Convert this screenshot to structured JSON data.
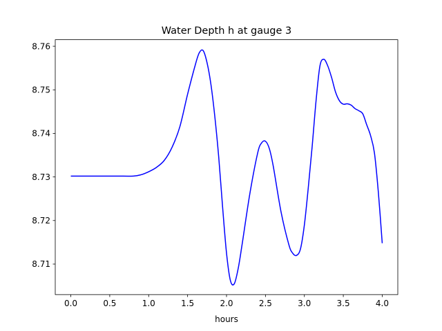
{
  "chart_data": {
    "type": "line",
    "title": "Water Depth h at gauge 3",
    "xlabel": "hours",
    "ylabel": "",
    "xlim": [
      -0.2,
      4.2
    ],
    "ylim": [
      8.703,
      8.7615
    ],
    "xticks": [
      0.0,
      0.5,
      1.0,
      1.5,
      2.0,
      2.5,
      3.0,
      3.5,
      4.0
    ],
    "xtick_labels": [
      "0.0",
      "0.5",
      "1.0",
      "1.5",
      "2.0",
      "2.5",
      "3.0",
      "3.5",
      "4.0"
    ],
    "yticks": [
      8.71,
      8.72,
      8.73,
      8.74,
      8.75,
      8.76
    ],
    "ytick_labels": [
      "8.71",
      "8.72",
      "8.73",
      "8.74",
      "8.75",
      "8.76"
    ],
    "grid": false,
    "series": [
      {
        "color": "#0000ff",
        "x": [
          0.0,
          0.2,
          0.4,
          0.6,
          0.8,
          0.9,
          1.0,
          1.1,
          1.2,
          1.3,
          1.4,
          1.5,
          1.6,
          1.65,
          1.7,
          1.75,
          1.8,
          1.85,
          1.9,
          1.95,
          2.0,
          2.05,
          2.1,
          2.15,
          2.2,
          2.3,
          2.4,
          2.45,
          2.5,
          2.55,
          2.6,
          2.7,
          2.8,
          2.85,
          2.9,
          2.95,
          3.0,
          3.05,
          3.1,
          3.15,
          3.2,
          3.25,
          3.3,
          3.35,
          3.4,
          3.45,
          3.5,
          3.55,
          3.6,
          3.65,
          3.7,
          3.75,
          3.8,
          3.85,
          3.9,
          3.95,
          4.0
        ],
        "y": [
          8.7302,
          8.7302,
          8.7302,
          8.7302,
          8.7302,
          8.7305,
          8.7312,
          8.7322,
          8.7338,
          8.7368,
          8.7415,
          8.749,
          8.7558,
          8.7585,
          8.759,
          8.7562,
          8.7512,
          8.7438,
          8.7345,
          8.723,
          8.7125,
          8.7062,
          8.7055,
          8.709,
          8.7145,
          8.7262,
          8.7355,
          8.7378,
          8.7382,
          8.7365,
          8.7325,
          8.722,
          8.7145,
          8.7125,
          8.712,
          8.7135,
          8.719,
          8.7275,
          8.737,
          8.7475,
          8.7555,
          8.757,
          8.7555,
          8.7528,
          8.7495,
          8.7475,
          8.7467,
          8.7468,
          8.7465,
          8.7457,
          8.7452,
          8.7445,
          8.742,
          8.7395,
          8.7355,
          8.7265,
          8.7148
        ]
      }
    ]
  }
}
